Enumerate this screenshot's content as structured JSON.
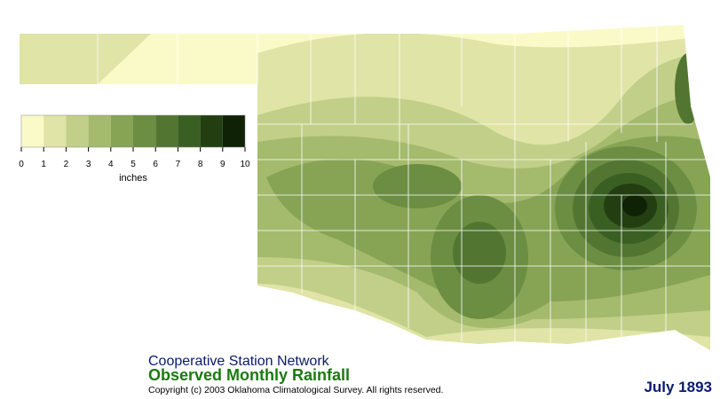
{
  "legend": {
    "label": "inches",
    "ticks": [
      0,
      1,
      2,
      3,
      4,
      5,
      6,
      7,
      8,
      9,
      10
    ],
    "colors": [
      "#fafac8",
      "#e0e4a6",
      "#c2cf88",
      "#a4ba6c",
      "#87a455",
      "#6c8e42",
      "#527632",
      "#3a5f22",
      "#233f12",
      "#0f2205"
    ]
  },
  "footer": {
    "network": "Cooperative Station Network",
    "title": "Observed Monthly Rainfall",
    "copyright": "Copyright (c) 2003 Oklahoma Climatological Survey. All rights reserved.",
    "date": "July 1893"
  }
}
